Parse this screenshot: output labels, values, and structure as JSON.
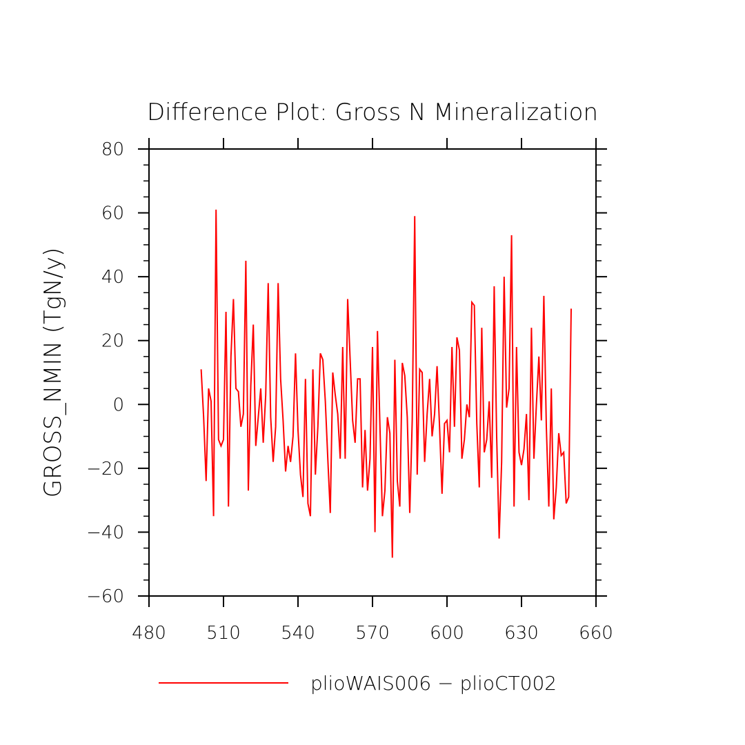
{
  "chart_data": {
    "type": "line",
    "title": "Difference Plot: Gross N Mineralization",
    "xlabel": "",
    "ylabel": "GROSS_NMIN   (TgN/y)",
    "xlim": [
      480,
      660
    ],
    "ylim": [
      -60,
      80
    ],
    "x_ticks": [
      480,
      510,
      540,
      570,
      600,
      630,
      660
    ],
    "y_ticks": [
      -60,
      -40,
      -20,
      0,
      20,
      40,
      60,
      80
    ],
    "x_tick_labels": [
      "480",
      "510",
      "540",
      "570",
      "600",
      "630",
      "660"
    ],
    "y_tick_labels": [
      "−60",
      "−40",
      "−20",
      "0",
      "20",
      "40",
      "60",
      "80"
    ],
    "grid": false,
    "legend_position": "bottom",
    "series": [
      {
        "name": "plioWAIS006 − plioCT002",
        "color": "#ff0000",
        "x": [
          501,
          502,
          503,
          504,
          505,
          506,
          507,
          508,
          509,
          510,
          511,
          512,
          513,
          514,
          515,
          516,
          517,
          518,
          519,
          520,
          521,
          522,
          523,
          524,
          525,
          526,
          527,
          528,
          529,
          530,
          531,
          532,
          533,
          534,
          535,
          536,
          537,
          538,
          539,
          540,
          541,
          542,
          543,
          544,
          545,
          546,
          547,
          548,
          549,
          550,
          551,
          552,
          553,
          554,
          555,
          556,
          557,
          558,
          559,
          560,
          561,
          562,
          563,
          564,
          565,
          566,
          567,
          568,
          569,
          570,
          571,
          572,
          573,
          574,
          575,
          576,
          577,
          578,
          579,
          580,
          581,
          582,
          583,
          584,
          585,
          586,
          587,
          588,
          589,
          590,
          591,
          592,
          593,
          594,
          595,
          596,
          597,
          598,
          599,
          600,
          601,
          602,
          603,
          604,
          605,
          606,
          607,
          608,
          609,
          610,
          611,
          612,
          613,
          614,
          615,
          616,
          617,
          618,
          619,
          620,
          621,
          622,
          623,
          624,
          625,
          626,
          627,
          628,
          629,
          630,
          631,
          632,
          633,
          634,
          635,
          636,
          637,
          638,
          639,
          640,
          641,
          642,
          643,
          644,
          645,
          646,
          647,
          648,
          649,
          650
        ],
        "values": [
          11,
          -4,
          -24,
          5,
          1,
          -35,
          61,
          -11,
          -13,
          -11,
          29,
          -32,
          15,
          33,
          5,
          4,
          -7,
          -3,
          45,
          -27,
          6,
          25,
          -13,
          -4,
          5,
          -12,
          3,
          38,
          -4,
          -18,
          -7,
          38,
          8,
          -5,
          -21,
          -13,
          -18,
          -10,
          16,
          -8,
          -22,
          -29,
          8,
          -31,
          -35,
          11,
          -22,
          -7,
          16,
          14,
          1,
          -17,
          -34,
          10,
          3,
          -3,
          -17,
          18,
          -17,
          33,
          14,
          -5,
          -12,
          8,
          8,
          -26,
          -8,
          -27,
          -17,
          18,
          -40,
          23,
          -7,
          -35,
          -27,
          -4,
          -9,
          -48,
          14,
          -24,
          -32,
          13,
          9,
          -4,
          -34,
          -5,
          59,
          -22,
          11,
          10,
          -18,
          -3,
          8,
          -10,
          -3,
          12,
          -7,
          -28,
          -6,
          -5,
          -15,
          18,
          -7,
          21,
          17,
          -17,
          -11,
          0,
          -4,
          32,
          31,
          -6,
          -26,
          24,
          -15,
          -11,
          1,
          -23,
          37,
          -10,
          -42,
          -18,
          40,
          -1,
          5,
          53,
          -32,
          18,
          -15,
          -19,
          -14,
          -3,
          -30,
          24,
          -17,
          0,
          15,
          -5,
          34,
          -7,
          -32,
          5,
          -36,
          -26,
          -9,
          -16,
          -15,
          -31,
          -29,
          30
        ]
      }
    ]
  }
}
